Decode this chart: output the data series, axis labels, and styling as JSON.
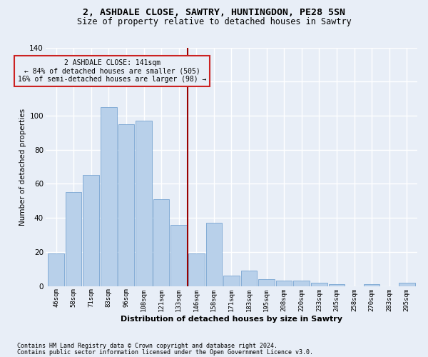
{
  "title1": "2, ASHDALE CLOSE, SAWTRY, HUNTINGDON, PE28 5SN",
  "title2": "Size of property relative to detached houses in Sawtry",
  "xlabel": "Distribution of detached houses by size in Sawtry",
  "ylabel": "Number of detached properties",
  "categories": [
    "46sqm",
    "58sqm",
    "71sqm",
    "83sqm",
    "96sqm",
    "108sqm",
    "121sqm",
    "133sqm",
    "146sqm",
    "158sqm",
    "171sqm",
    "183sqm",
    "195sqm",
    "208sqm",
    "220sqm",
    "233sqm",
    "245sqm",
    "258sqm",
    "270sqm",
    "283sqm",
    "295sqm"
  ],
  "values": [
    19,
    55,
    65,
    105,
    95,
    97,
    51,
    36,
    19,
    37,
    6,
    9,
    4,
    3,
    3,
    2,
    1,
    0,
    1,
    0,
    2
  ],
  "bar_color": "#b8d0ea",
  "bar_edge_color": "#6699cc",
  "vline_color": "#990000",
  "annotation_box_edge": "#cc2222",
  "annotation_line1": "2 ASHDALE CLOSE: 141sqm",
  "annotation_line2": "← 84% of detached houses are smaller (505)",
  "annotation_line3": "16% of semi-detached houses are larger (98) →",
  "ylim": [
    0,
    140
  ],
  "yticks": [
    0,
    20,
    40,
    60,
    80,
    100,
    120,
    140
  ],
  "bg_color": "#e8eef7",
  "grid_color": "#ffffff",
  "footer1": "Contains HM Land Registry data © Crown copyright and database right 2024.",
  "footer2": "Contains public sector information licensed under the Open Government Licence v3.0.",
  "title_fontsize": 9.5,
  "subtitle_fontsize": 8.5,
  "bar_width": 0.92,
  "vline_x": 7.5
}
